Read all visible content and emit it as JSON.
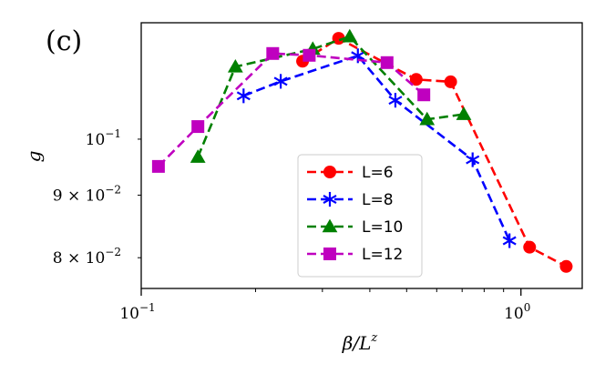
{
  "chart_data": {
    "type": "line",
    "panel_label": "(c)",
    "title": "",
    "xlabel": "β/L",
    "xlabel_sup": "z",
    "ylabel": "g",
    "xscale": "log",
    "yscale": "log",
    "xlim": [
      0.1,
      1.45
    ],
    "ylim": [
      0.0755,
      0.1245
    ],
    "grid": false,
    "legend": "center-bottom",
    "x_ticks": [
      {
        "value": 0.1,
        "label": "10",
        "sup": "−1"
      },
      {
        "value": 1.0,
        "label": "10",
        "sup": "0"
      }
    ],
    "y_ticks": [
      {
        "value": 0.08,
        "label": "8 × 10",
        "sup": "−2"
      },
      {
        "value": 0.09,
        "label": "9 × 10",
        "sup": "−2"
      },
      {
        "value": 0.1,
        "label": "10",
        "sup": "−1"
      }
    ],
    "series": [
      {
        "name": "L=6",
        "color": "#ff0000",
        "marker": "circle",
        "x": [
          0.266,
          0.331,
          0.53,
          0.653,
          1.054,
          1.316
        ],
        "y": [
          0.1158,
          0.1209,
          0.1119,
          0.1114,
          0.0816,
          0.0787
        ]
      },
      {
        "name": "L=8",
        "color": "#0000ff",
        "marker": "asterisk",
        "x": [
          0.186,
          0.233,
          0.372,
          0.467,
          0.746,
          0.933
        ],
        "y": [
          0.1085,
          0.1115,
          0.117,
          0.1076,
          0.0962,
          0.0826
        ]
      },
      {
        "name": "L=10",
        "color": "#008000",
        "marker": "triangle",
        "x": [
          0.141,
          0.177,
          0.283,
          0.354,
          0.566,
          0.707
        ],
        "y": [
          0.0967,
          0.1146,
          0.1185,
          0.1213,
          0.1038,
          0.1048
        ]
      },
      {
        "name": "L=12",
        "color": "#bf00bf",
        "marker": "square",
        "x": [
          0.111,
          0.141,
          0.222,
          0.277,
          0.444,
          0.555
        ],
        "y": [
          0.095,
          0.1024,
          0.1175,
          0.1171,
          0.1155,
          0.1087
        ]
      }
    ]
  }
}
